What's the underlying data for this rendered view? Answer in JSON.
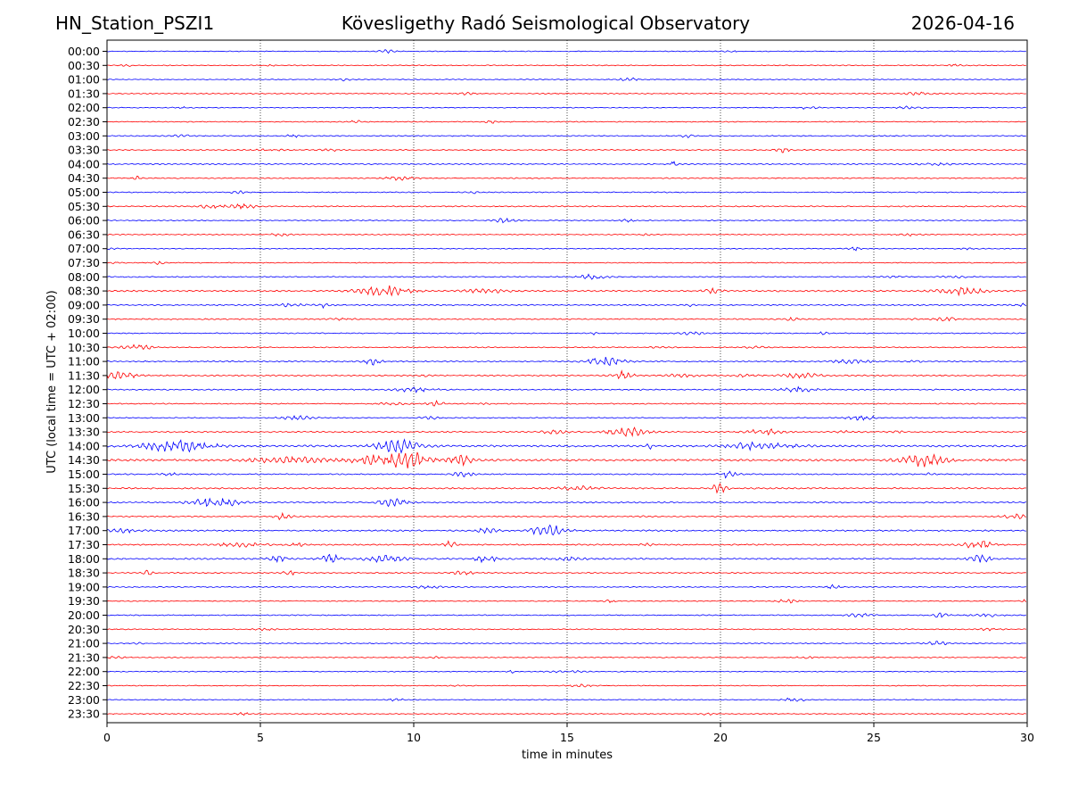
{
  "header": {
    "station": "HN_Station_PSZI1",
    "observatory": "Kövesligethy Radó Seismological Observatory",
    "date": "2026-04-16"
  },
  "chart_data": {
    "type": "line",
    "title": "Kövesligethy Radó Seismological Observatory",
    "xlabel": "time in minutes",
    "ylabel": "UTC (local time = UTC + 02:00)",
    "xlim": [
      0,
      30
    ],
    "x_ticks": [
      "0",
      "5",
      "10",
      "15",
      "20",
      "25",
      "30"
    ],
    "x_tick_values": [
      0,
      5,
      10,
      15,
      20,
      25,
      30
    ],
    "vertical_gridlines": true,
    "row_labels": [
      "00:00",
      "00:30",
      "01:00",
      "01:30",
      "02:00",
      "02:30",
      "03:00",
      "03:30",
      "04:00",
      "04:30",
      "05:00",
      "05:30",
      "06:00",
      "06:30",
      "07:00",
      "07:30",
      "08:00",
      "08:30",
      "09:00",
      "09:30",
      "10:00",
      "10:30",
      "11:00",
      "11:30",
      "12:00",
      "12:30",
      "13:00",
      "13:30",
      "14:00",
      "14:30",
      "15:00",
      "15:30",
      "16:00",
      "16:30",
      "17:00",
      "17:30",
      "18:00",
      "18:30",
      "19:00",
      "19:30",
      "20:00",
      "20:30",
      "21:00",
      "21:30",
      "22:00",
      "22:30",
      "23:00",
      "23:30"
    ],
    "trace_colors": [
      "#0000ff",
      "#ff0000"
    ],
    "row_activity": [
      0.25,
      0.35,
      0.3,
      0.4,
      0.3,
      0.35,
      0.45,
      0.5,
      0.55,
      0.45,
      0.4,
      0.55,
      0.4,
      0.35,
      0.35,
      0.35,
      0.45,
      0.85,
      0.6,
      0.6,
      0.4,
      0.45,
      0.65,
      0.75,
      0.65,
      0.5,
      0.45,
      0.7,
      1.2,
      1.3,
      0.6,
      0.8,
      0.75,
      0.55,
      0.8,
      0.75,
      0.85,
      0.55,
      0.45,
      0.35,
      0.45,
      0.4,
      0.4,
      0.35,
      0.35,
      0.3,
      0.35,
      0.3
    ]
  }
}
